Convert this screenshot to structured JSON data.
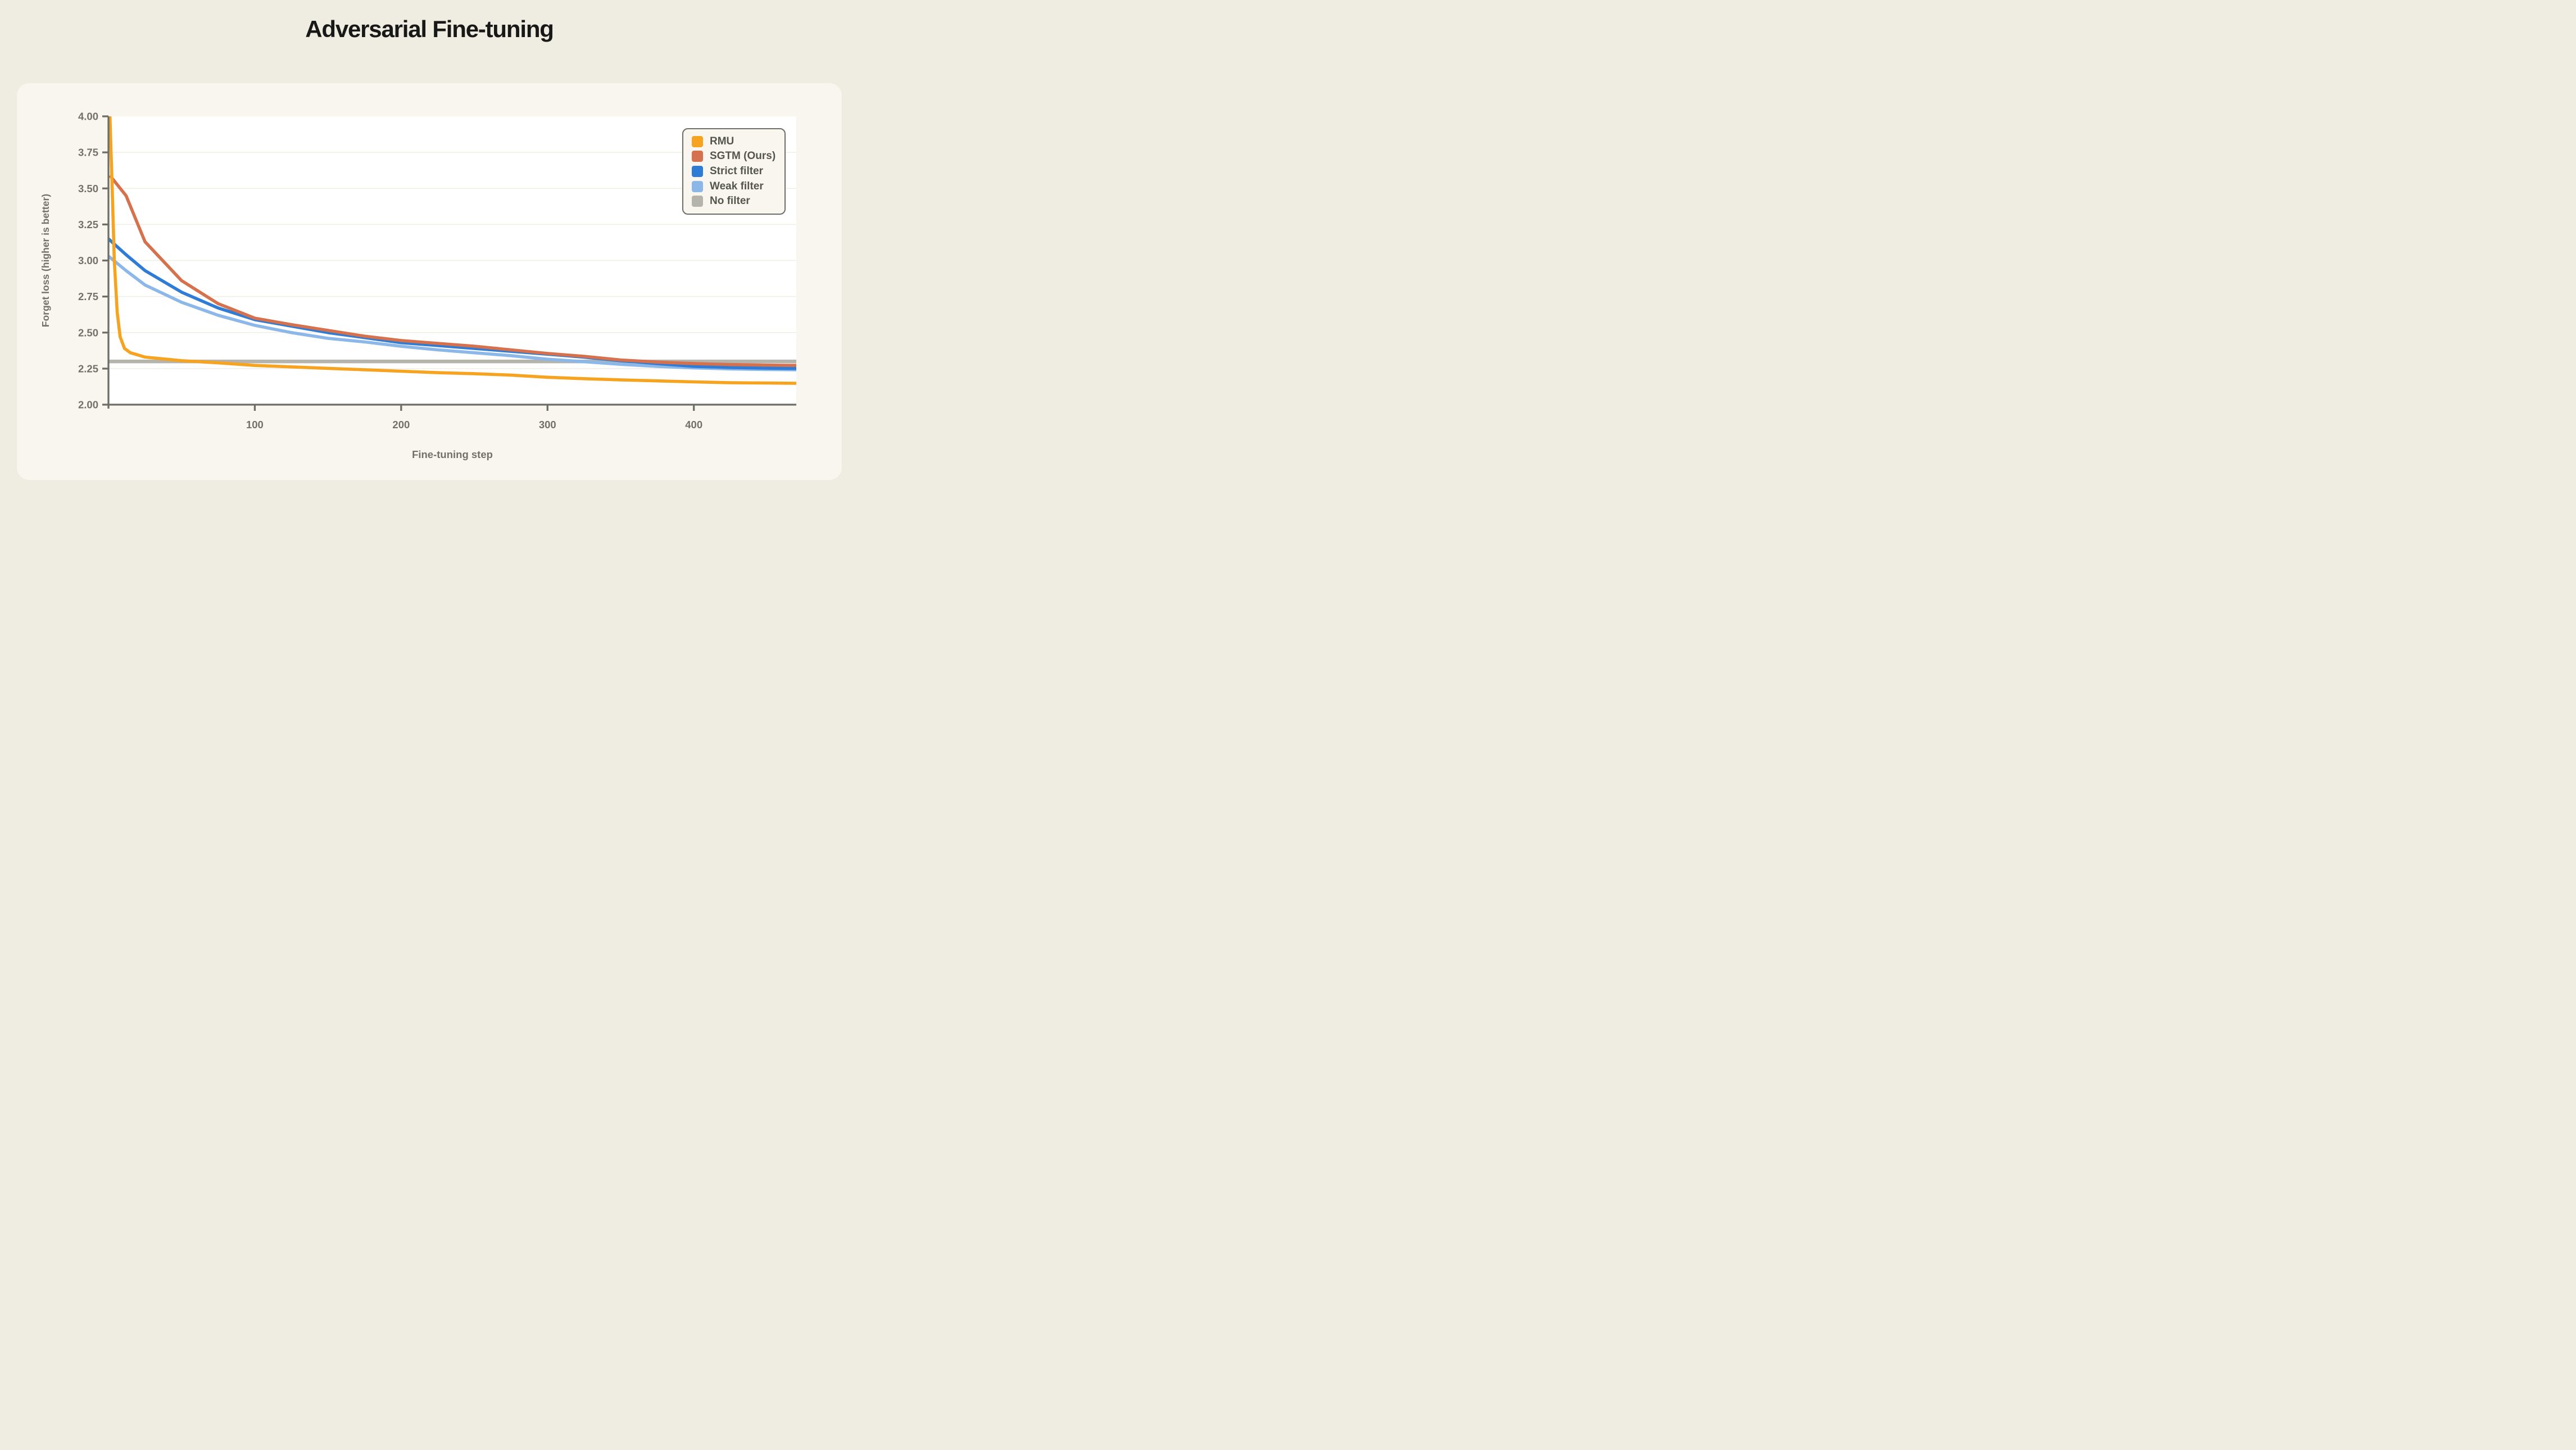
{
  "page": {
    "title": "Adversarial Fine-tuning"
  },
  "colors": {
    "page_bg": "#EFECE2",
    "card_bg": "#F8F6EF",
    "plot_bg": "#FFFFFF",
    "gridline": "#F0EDE3",
    "axis": "#6E6E68",
    "tick_text": "#71716A",
    "title_text": "#181816",
    "legend_text": "#55554F",
    "legend_border": "#6E6E68"
  },
  "chart_data": {
    "type": "line",
    "title": "Adversarial Fine-tuning",
    "xlabel": "Fine-tuning step",
    "ylabel": "Forget loss (higher is better)",
    "xlim": [
      0,
      470
    ],
    "ylim": [
      2.0,
      4.0
    ],
    "grid": "horizontal",
    "legend_position": "top-right",
    "x_ticks": [
      100,
      200,
      300,
      400
    ],
    "x_tick_labels": [
      "100",
      "200",
      "300",
      "400"
    ],
    "y_ticks": [
      4.0,
      3.75,
      3.5,
      3.25,
      3.0,
      2.75,
      2.5,
      2.25,
      2.0
    ],
    "y_tick_labels": [
      "4.00",
      "3.75",
      "3.50",
      "3.25",
      "3.00",
      "2.75",
      "2.50",
      "2.25",
      "2.00"
    ],
    "gridline_values": [
      3.75,
      3.5,
      3.25,
      3.0,
      2.75,
      2.5,
      2.25
    ],
    "series": [
      {
        "name": "RMU",
        "color": "#F6A320",
        "stroke_width": 5.6,
        "x": [
          1,
          2.5,
          4,
          6,
          8,
          11,
          15,
          25,
          50,
          75,
          100,
          125,
          150,
          175,
          200,
          225,
          250,
          275,
          300,
          325,
          350,
          375,
          400,
          425,
          450,
          470
        ],
        "y": [
          4.0,
          3.52,
          3.0,
          2.64,
          2.47,
          2.39,
          2.36,
          2.33,
          2.305,
          2.29,
          2.272,
          2.262,
          2.252,
          2.242,
          2.232,
          2.222,
          2.215,
          2.205,
          2.19,
          2.18,
          2.172,
          2.165,
          2.158,
          2.152,
          2.15,
          2.148
        ]
      },
      {
        "name": "SGTM (Ours)",
        "color": "#D5714D",
        "stroke_width": 5.6,
        "x": [
          1,
          12,
          25,
          50,
          75,
          100,
          125,
          150,
          175,
          200,
          225,
          250,
          275,
          300,
          325,
          350,
          375,
          400,
          425,
          450,
          470
        ],
        "y": [
          3.59,
          3.45,
          3.13,
          2.86,
          2.7,
          2.6,
          2.555,
          2.515,
          2.475,
          2.445,
          2.425,
          2.405,
          2.38,
          2.355,
          2.335,
          2.31,
          2.295,
          2.285,
          2.278,
          2.274,
          2.272
        ]
      },
      {
        "name": "Strict filter",
        "color": "#2E7CD6",
        "stroke_width": 5.6,
        "x": [
          0,
          12,
          25,
          50,
          75,
          100,
          125,
          150,
          175,
          200,
          225,
          250,
          275,
          300,
          325,
          350,
          375,
          400,
          425,
          450,
          470
        ],
        "y": [
          3.15,
          3.04,
          2.93,
          2.78,
          2.67,
          2.59,
          2.545,
          2.5,
          2.465,
          2.43,
          2.41,
          2.39,
          2.37,
          2.35,
          2.33,
          2.305,
          2.285,
          2.266,
          2.258,
          2.253,
          2.251
        ]
      },
      {
        "name": "Weak filter",
        "color": "#8CB7E9",
        "stroke_width": 5.6,
        "x": [
          0,
          12,
          25,
          50,
          75,
          100,
          125,
          150,
          175,
          200,
          225,
          250,
          275,
          300,
          325,
          350,
          375,
          400,
          425,
          450,
          470
        ],
        "y": [
          3.03,
          2.93,
          2.83,
          2.71,
          2.62,
          2.55,
          2.5,
          2.46,
          2.435,
          2.405,
          2.38,
          2.36,
          2.34,
          2.315,
          2.298,
          2.28,
          2.265,
          2.255,
          2.248,
          2.244,
          2.242
        ]
      },
      {
        "name": "No filter",
        "color": "#B4B4AC",
        "stroke_width": 6.5,
        "x": [
          0,
          470
        ],
        "y": [
          2.3,
          2.3
        ]
      }
    ]
  }
}
